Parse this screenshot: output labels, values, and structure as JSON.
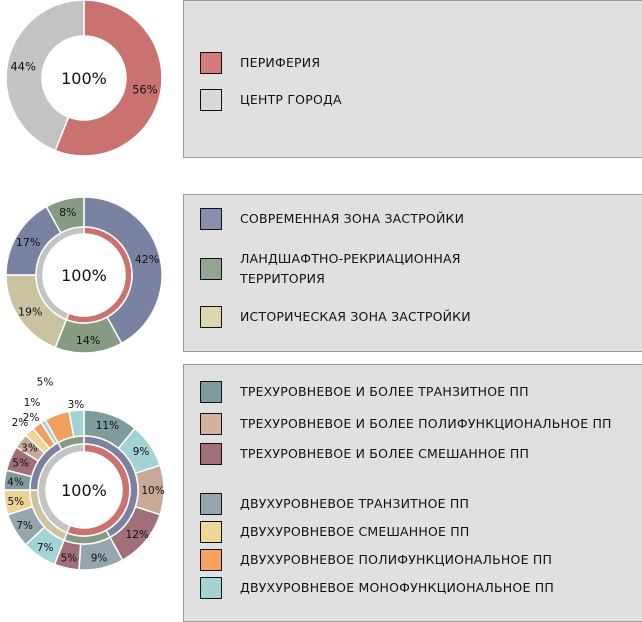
{
  "chart_data": [
    {
      "type": "pie",
      "center_label": "100%",
      "rings": [
        {
          "name": "",
          "slices": [
            {
              "label": "ПЕРИФЕРИЯ",
              "value": 56,
              "text": "56%",
              "color": "#c97270"
            },
            {
              "label": "ЦЕНТР ГОРОДА",
              "value": 44,
              "text": "44%",
              "color": "#c3c3c3"
            }
          ]
        }
      ],
      "legend": [
        {
          "label": "ПЕРИФЕРИЯ",
          "color": "#d47c7a"
        },
        {
          "label": "ЦЕНТР ГОРОДА",
          "color": "#d9d9d9"
        }
      ]
    },
    {
      "type": "pie",
      "center_label": "100%",
      "rings": [
        {
          "name": "outer",
          "slices": [
            {
              "label": "СОВРЕМЕННАЯ ЗОНА ЗАСТРОЙКИ",
              "value": 42,
              "text": "42%",
              "color": "#7b82a1"
            },
            {
              "label": "ЛАНДШАФТНО-РЕКРИАЦИОННАЯ ТЕРРИТОРИЯ",
              "value": 14,
              "text": "14%",
              "color": "#869a84"
            },
            {
              "label": "ИСТОРИЧЕСКАЯ ЗОНА ЗАСТРОЙКИ",
              "value": 19,
              "text": "19%",
              "color": "#c9c49f"
            },
            {
              "label": "СОВРЕМЕННАЯ ЗОНА ЗАСТРОЙКИ",
              "value": 17,
              "text": "17%",
              "color": "#7b82a1"
            },
            {
              "label": "ЛАНДШАФТНО-РЕКРИАЦИОННАЯ ТЕРРИТОРИЯ",
              "value": 8,
              "text": "8%",
              "color": "#869a84"
            }
          ]
        },
        {
          "name": "inner",
          "slices": [
            {
              "label": "ПЕРИФЕРИЯ",
              "value": 56,
              "text": "",
              "color": "#c97270"
            },
            {
              "label": "ЦЕНТР ГОРОДА",
              "value": 44,
              "text": "",
              "color": "#c3c3c3"
            }
          ]
        }
      ],
      "legend": [
        {
          "label": "СОВРЕМЕННАЯ ЗОНА ЗАСТРОЙКИ",
          "color": "#8a8fae"
        },
        {
          "label": "ЛАНДШАФТНО-РЕКРИАЦИОННАЯ ТЕРРИТОРИЯ",
          "color": "#93a691"
        },
        {
          "label": "ИСТОРИЧЕСКАЯ ЗОНА ЗАСТРОЙКИ",
          "color": "#dcd7b2"
        }
      ]
    },
    {
      "type": "pie",
      "center_label": "100%",
      "rings": [
        {
          "name": "outer",
          "slices": [
            {
              "label": "ТРЕХУРОВНЕВОЕ И БОЛЕЕ ТРАНЗИТНОЕ ПП",
              "value": 11,
              "text": "11%",
              "color": "#7d9c9b"
            },
            {
              "label": "ДВУХУРОВНЕВОЕ МОНОФУНКЦИОНАЛЬНОЕ ПП",
              "value": 9,
              "text": "9%",
              "color": "#a3d3d4"
            },
            {
              "label": "ТРЕХУРОВНЕВОЕ И БОЛЕЕ ПОЛИФУНКЦИОНАЛЬНОЕ ПП",
              "value": 10,
              "text": "10%",
              "color": "#c8a896"
            },
            {
              "label": "ТРЕХУРОВНЕВОЕ И БОЛЕЕ СМЕШАННОЕ ПП",
              "value": 12,
              "text": "12%",
              "color": "#a06f78"
            },
            {
              "label": "ДВУХУРОВНЕВОЕ ТРАНЗИТНОЕ ПП",
              "value": 9,
              "text": "9%",
              "color": "#96a6af"
            },
            {
              "label": "ТРЕХУРОВНЕВОЕ И БОЛЕЕ СМЕШАННОЕ ПП",
              "value": 5,
              "text": "5%",
              "color": "#a06f78"
            },
            {
              "label": "ДВУХУРОВНЕВОЕ МОНОФУНКЦИОНАЛЬНОЕ ПП",
              "value": 7,
              "text": "7%",
              "color": "#a3d3d4"
            },
            {
              "label": "ДВУХУРОВНЕВОЕ ТРАНЗИТНОЕ ПП",
              "value": 7,
              "text": "7%",
              "color": "#96a6af"
            },
            {
              "label": "ДВУХУРОВНЕВОЕ СМЕШАННОЕ ПП",
              "value": 5,
              "text": "5%",
              "color": "#ecd495"
            },
            {
              "label": "ТРЕХУРОВНЕВОЕ И БОЛЕЕ ТРАНЗИТНОЕ ПП",
              "value": 4,
              "text": "4%",
              "color": "#7d9c9b"
            },
            {
              "label": "ТРЕХУРОВНЕВОЕ И БОЛЕЕ СМЕШАННОЕ ПП",
              "value": 5,
              "text": "5%",
              "color": "#a06f78"
            },
            {
              "label": "ТРЕХУРОВНЕВОЕ И БОЛЕЕ ПОЛИФУНКЦИОНАЛЬНОЕ ПП",
              "value": 3,
              "text": "3%",
              "color": "#c8a896"
            },
            {
              "label": "ДВУХУРОВНЕВОЕ СМЕШАННОЕ ПП",
              "value": 2,
              "text": "2%",
              "color": "#ecd495"
            },
            {
              "label": "ДВУХУРОВНЕВОЕ ПОЛИФУНКЦИОНАЛЬНОЕ ПП",
              "value": 2,
              "text": "2%",
              "color": "#f0a060"
            },
            {
              "label": "ДВУХУРОВНЕВОЕ МОНОФУНКЦИОНАЛЬНОЕ ПП",
              "value": 1,
              "text": "1%",
              "color": "#a3d3d4"
            },
            {
              "label": "ДВУХУРОВНЕВОЕ ПОЛИФУНКЦИОНАЛЬНОЕ ПП",
              "value": 5,
              "text": "5%",
              "color": "#f0a060"
            },
            {
              "label": "ДВУХУРОВНЕВОЕ МОНОФУНКЦИОНАЛЬНОЕ ПП",
              "value": 3,
              "text": "3%",
              "color": "#a3d3d4"
            }
          ]
        },
        {
          "name": "middle",
          "slices": [
            {
              "label": "СОВРЕМЕННАЯ ЗОНА ЗАСТРОЙКИ",
              "value": 42,
              "text": "",
              "color": "#7b82a1"
            },
            {
              "label": "ЛАНДШАФТНО-РЕКРИАЦИОННАЯ ТЕРРИТОРИЯ",
              "value": 14,
              "text": "",
              "color": "#869a84"
            },
            {
              "label": "ИСТОРИЧЕСКАЯ ЗОНА ЗАСТРОЙКИ",
              "value": 19,
              "text": "",
              "color": "#c9c49f"
            },
            {
              "label": "СОВРЕМЕННАЯ ЗОНА ЗАСТРОЙКИ",
              "value": 17,
              "text": "",
              "color": "#7b82a1"
            },
            {
              "label": "ЛАНДШАФТНО-РЕКРИАЦИОННАЯ ТЕРРИТОРИЯ",
              "value": 8,
              "text": "",
              "color": "#869a84"
            }
          ]
        },
        {
          "name": "inner",
          "slices": [
            {
              "label": "ПЕРИФЕРИЯ",
              "value": 56,
              "text": "",
              "color": "#c97270"
            },
            {
              "label": "ЦЕНТР ГОРОДА",
              "value": 44,
              "text": "",
              "color": "#c3c3c3"
            }
          ]
        }
      ],
      "legend": [
        {
          "label": "ТРЕХУРОВНЕВОЕ И БОЛЕЕ ТРАНЗИТНОЕ ПП",
          "color": "#7d9c9b"
        },
        {
          "label": "ТРЕХУРОВНЕВОЕ И БОЛЕЕ ПОЛИФУНКЦИОНАЛЬНОЕ ПП",
          "color": "#d3b39f"
        },
        {
          "label": "ТРЕХУРОВНЕВОЕ И БОЛЕЕ СМЕШАННОЕ ПП",
          "color": "#a06f78"
        },
        {
          "label": "ДВУХУРОВНЕВОЕ ТРАНЗИТНОЕ ПП",
          "color": "#96a6af"
        },
        {
          "label": "ДВУХУРОВНЕВОЕ СМЕШАННОЕ ПП",
          "color": "#f0d898"
        },
        {
          "label": "ДВУХУРОВНЕВОЕ ПОЛИФУНКЦИОНАЛЬНОЕ ПП",
          "color": "#f4a25e"
        },
        {
          "label": "ДВУХУРОВНЕВОЕ МОНОФУНКЦИОНАЛЬНОЕ ПП",
          "color": "#a3d3d4"
        }
      ]
    }
  ]
}
